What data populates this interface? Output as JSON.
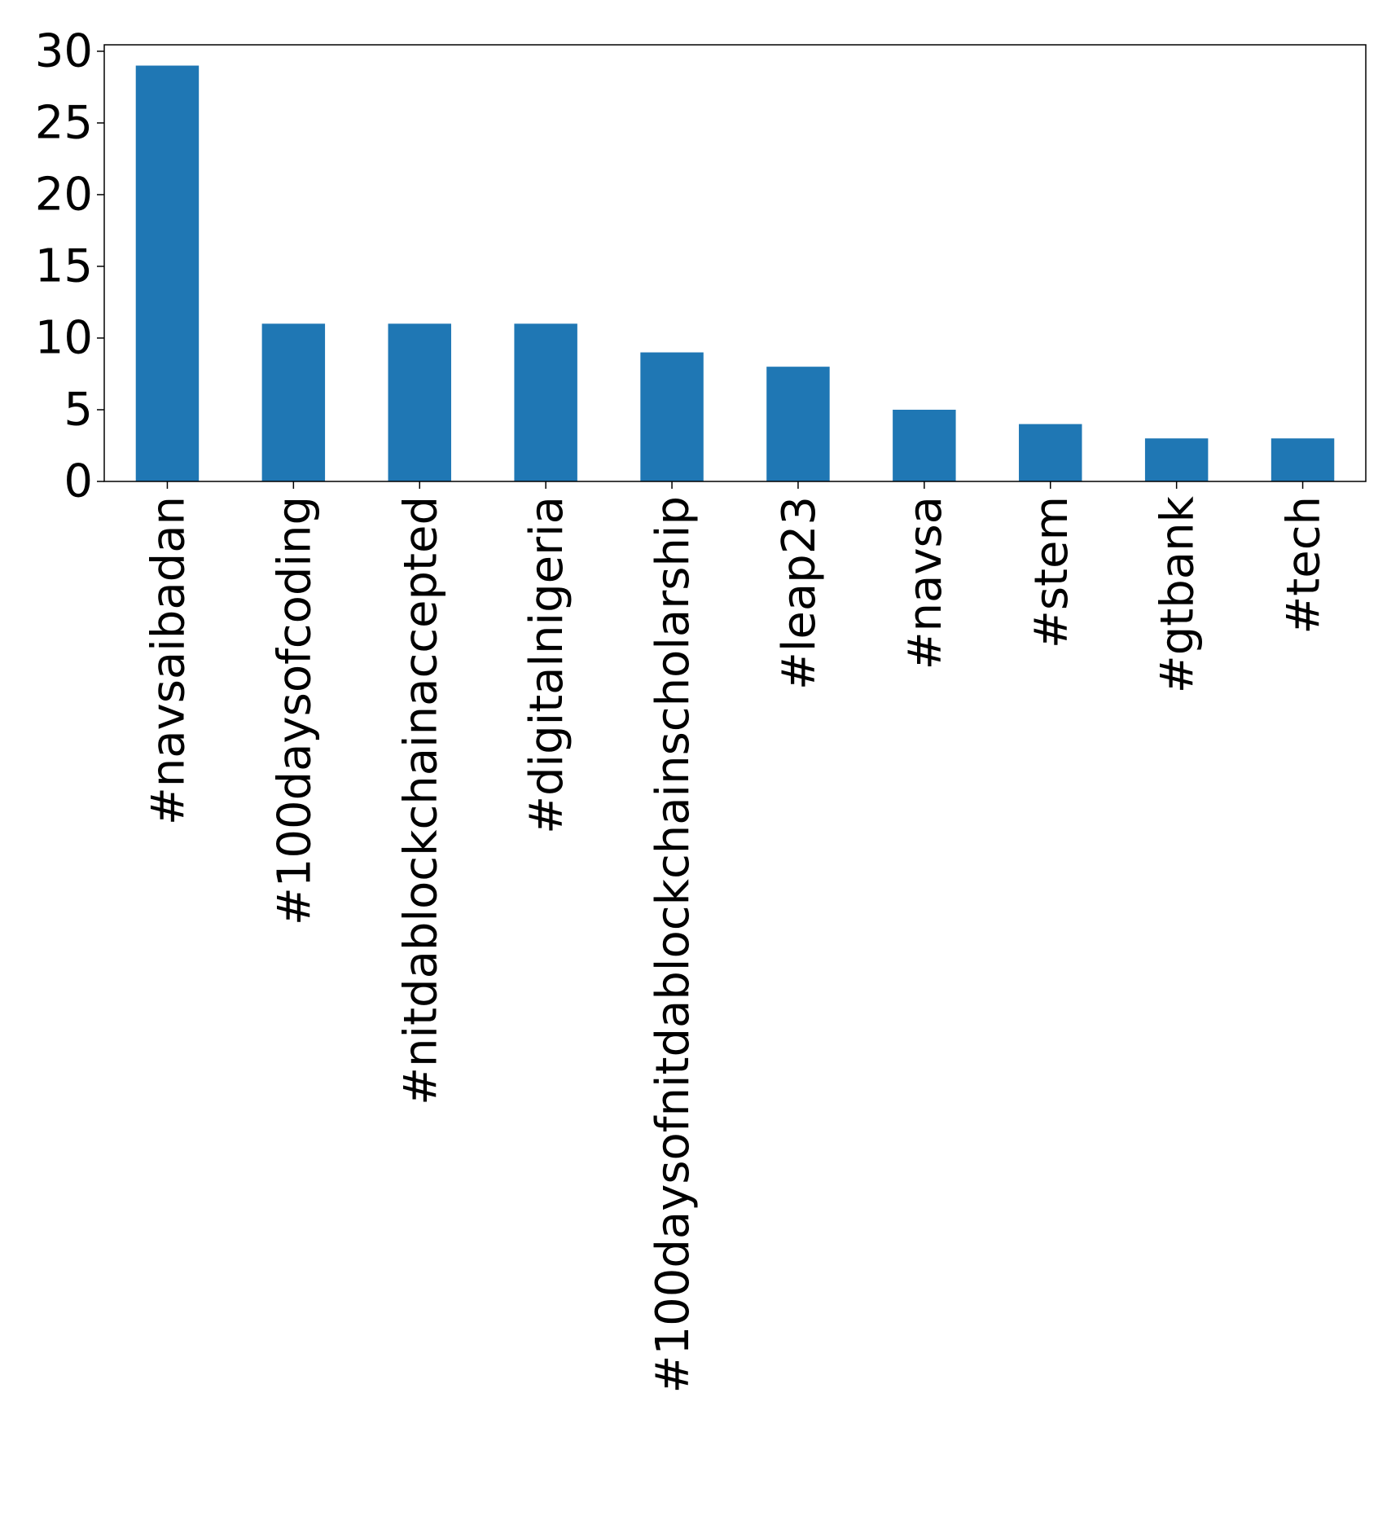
{
  "chart_data": {
    "type": "bar",
    "title": "",
    "xlabel": "",
    "ylabel": "",
    "categories": [
      "#navsaibadan",
      "#100daysofcoding",
      "#nitdablockchainaccepted",
      "#digitalnigeria",
      "#100daysofnitdablockchainscholarship",
      "#leap23",
      "#navsa",
      "#stem",
      "#gtbank",
      "#tech"
    ],
    "values": [
      29,
      11,
      11,
      11,
      9,
      8,
      5,
      4,
      3,
      3
    ],
    "ylim": [
      0,
      30.45
    ],
    "yticks": [
      0,
      5,
      10,
      15,
      20,
      25,
      30
    ],
    "bar_color": "#1f77b4",
    "grid": false,
    "legend": "none"
  }
}
